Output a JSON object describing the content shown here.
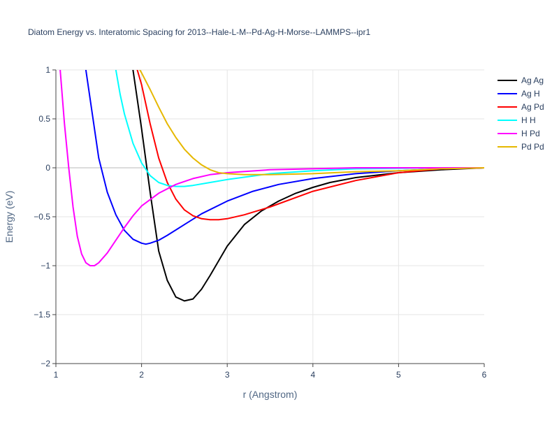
{
  "chart_data": {
    "type": "line",
    "title": "Diatom Energy vs. Interatomic Spacing for 2013--Hale-L-M--Pd-Ag-H-Morse--LAMMPS--ipr1",
    "xlabel": "r (Angstrom)",
    "ylabel": "Energy (eV)",
    "xlim": [
      1,
      6
    ],
    "ylim": [
      -2,
      1
    ],
    "xticks": [
      1,
      2,
      3,
      4,
      5,
      6
    ],
    "yticks": [
      -2,
      -1.5,
      -1,
      -0.5,
      0,
      0.5,
      1
    ],
    "xtick_labels": [
      "1",
      "2",
      "3",
      "4",
      "5",
      "6"
    ],
    "ytick_labels": [
      "−2",
      "−1.5",
      "−1",
      "−0.5",
      "0",
      "0.5",
      "1"
    ],
    "grid": true,
    "legend_position": "top-right",
    "series": [
      {
        "name": "Ag Ag",
        "color": "#000000",
        "x": [
          1.9,
          2.0,
          2.1,
          2.2,
          2.3,
          2.4,
          2.5,
          2.6,
          2.7,
          2.8,
          2.9,
          3.0,
          3.2,
          3.4,
          3.6,
          3.8,
          4.0,
          4.2,
          4.5,
          5.0,
          5.5,
          6.0
        ],
        "y": [
          1.0,
          0.4,
          -0.25,
          -0.85,
          -1.15,
          -1.32,
          -1.36,
          -1.34,
          -1.24,
          -1.1,
          -0.95,
          -0.8,
          -0.58,
          -0.44,
          -0.34,
          -0.26,
          -0.2,
          -0.15,
          -0.1,
          -0.05,
          -0.02,
          0.0
        ]
      },
      {
        "name": "Ag H",
        "color": "#0000ff",
        "x": [
          1.35,
          1.4,
          1.5,
          1.6,
          1.7,
          1.8,
          1.9,
          2.0,
          2.05,
          2.1,
          2.2,
          2.3,
          2.5,
          2.7,
          3.0,
          3.3,
          3.6,
          4.0,
          4.5,
          5.0,
          5.5,
          6.0
        ],
        "y": [
          1.0,
          0.7,
          0.1,
          -0.25,
          -0.48,
          -0.64,
          -0.73,
          -0.77,
          -0.78,
          -0.77,
          -0.74,
          -0.69,
          -0.58,
          -0.47,
          -0.34,
          -0.24,
          -0.17,
          -0.11,
          -0.06,
          -0.03,
          -0.01,
          0.0
        ]
      },
      {
        "name": "Ag Pd",
        "color": "#ff0000",
        "x": [
          1.95,
          2.0,
          2.1,
          2.2,
          2.3,
          2.4,
          2.5,
          2.6,
          2.7,
          2.8,
          2.9,
          3.0,
          3.2,
          3.5,
          4.0,
          4.5,
          5.0,
          5.5,
          6.0
        ],
        "y": [
          1.0,
          0.85,
          0.45,
          0.1,
          -0.15,
          -0.32,
          -0.43,
          -0.49,
          -0.52,
          -0.53,
          -0.53,
          -0.52,
          -0.48,
          -0.4,
          -0.24,
          -0.13,
          -0.05,
          -0.01,
          0.0
        ]
      },
      {
        "name": "H H",
        "color": "#00ffff",
        "x": [
          1.7,
          1.75,
          1.8,
          1.9,
          2.0,
          2.1,
          2.2,
          2.3,
          2.4,
          2.5,
          2.6,
          2.8,
          3.0,
          3.5,
          4.0,
          4.5,
          5.0,
          5.5,
          6.0
        ],
        "y": [
          1.0,
          0.75,
          0.55,
          0.25,
          0.05,
          -0.08,
          -0.15,
          -0.18,
          -0.19,
          -0.19,
          -0.18,
          -0.15,
          -0.12,
          -0.06,
          -0.03,
          -0.01,
          -0.005,
          0.0,
          0.0
        ]
      },
      {
        "name": "H Pd",
        "color": "#ff00ff",
        "x": [
          1.05,
          1.1,
          1.15,
          1.2,
          1.25,
          1.3,
          1.35,
          1.4,
          1.45,
          1.5,
          1.6,
          1.7,
          1.8,
          1.9,
          2.0,
          2.2,
          2.4,
          2.6,
          2.8,
          3.0,
          3.5,
          4.0,
          4.5,
          5.0,
          6.0
        ],
        "y": [
          1.0,
          0.45,
          0.0,
          -0.4,
          -0.7,
          -0.88,
          -0.97,
          -1.0,
          -1.0,
          -0.97,
          -0.87,
          -0.74,
          -0.61,
          -0.49,
          -0.39,
          -0.26,
          -0.17,
          -0.11,
          -0.07,
          -0.05,
          -0.02,
          -0.01,
          0.0,
          0.0,
          0.0
        ]
      },
      {
        "name": "Pd Pd",
        "color": "#e6b800",
        "x": [
          1.98,
          2.0,
          2.1,
          2.2,
          2.3,
          2.4,
          2.5,
          2.6,
          2.7,
          2.8,
          2.9,
          3.0,
          3.2,
          3.5,
          4.0,
          4.5,
          5.0,
          5.5,
          6.0
        ],
        "y": [
          1.0,
          0.97,
          0.8,
          0.62,
          0.45,
          0.31,
          0.19,
          0.1,
          0.03,
          -0.02,
          -0.05,
          -0.06,
          -0.07,
          -0.07,
          -0.06,
          -0.04,
          -0.03,
          -0.01,
          0.0
        ]
      }
    ]
  }
}
